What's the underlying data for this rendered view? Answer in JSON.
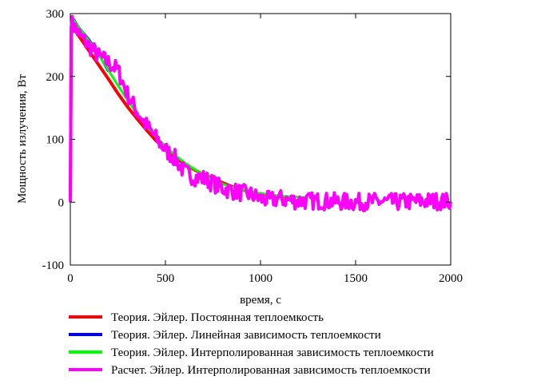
{
  "chart_data": {
    "type": "line",
    "title": "",
    "xlabel": "время, с",
    "ylabel": "Мощность излучения, Вт",
    "xlim": [
      0,
      2000
    ],
    "ylim": [
      -100,
      300
    ],
    "xticks": [
      0,
      500,
      1000,
      1500,
      2000
    ],
    "yticks": [
      -100,
      0,
      100,
      200,
      300
    ],
    "grid": false,
    "legend_position": "bottom",
    "series": [
      {
        "name": "Теория. Эйлер. Постоянная теплоемкость",
        "color": "#ff0000",
        "x": [
          0,
          5,
          20,
          50,
          100,
          150,
          200,
          250,
          300,
          350,
          400,
          450,
          500,
          550,
          600,
          650,
          700,
          750,
          800,
          850,
          900,
          950,
          1000,
          1050,
          1100,
          1150
        ],
        "values": [
          0,
          280,
          276,
          262,
          240,
          218,
          196,
          173,
          152,
          133,
          115,
          98,
          85,
          72,
          61,
          52,
          44,
          37,
          31,
          25,
          20,
          16,
          13,
          11,
          9,
          8
        ]
      },
      {
        "name": "Теория. Эйлер. Линейная зависимость теплоемкости",
        "color": "#0000ff",
        "x": [
          0,
          5,
          20,
          50,
          100,
          150,
          200
        ],
        "values": [
          0,
          285,
          290,
          276,
          258,
          235,
          208
        ]
      },
      {
        "name": "Теория. Эйлер. Интерполированная зависимость теплоемкости",
        "color": "#00ff00",
        "x": [
          0,
          5,
          20,
          50,
          100,
          150,
          200,
          250,
          300,
          350,
          400,
          450,
          500,
          550,
          600,
          650,
          700,
          750,
          800,
          850,
          900,
          950,
          1000,
          1050,
          1100,
          1150,
          1200,
          1250
        ],
        "values": [
          0,
          286,
          289,
          276,
          256,
          234,
          210,
          186,
          163,
          141,
          121,
          104,
          89,
          75,
          63,
          53,
          44,
          36,
          29,
          24,
          20,
          17,
          14,
          12,
          10,
          9,
          8,
          7
        ]
      },
      {
        "name": "Расчет. Эйлер. Интерполированная зависимость теплоемкости",
        "color": "#ff00ff",
        "x": [
          0,
          5,
          20,
          50,
          100,
          150,
          200,
          250,
          300,
          350,
          400,
          450,
          500,
          550,
          600,
          650,
          700,
          750,
          800,
          850,
          900,
          950,
          1000,
          1050,
          1100,
          1150,
          1200,
          1300,
          1400,
          1500,
          1600,
          1700,
          1800,
          1900,
          2000
        ],
        "values": [
          0,
          285,
          280,
          265,
          248,
          232,
          222,
          210,
          172,
          145,
          122,
          102,
          83,
          70,
          48,
          40,
          38,
          30,
          22,
          18,
          15,
          12,
          5,
          3,
          6,
          3,
          2,
          2,
          1,
          0,
          1,
          0,
          1,
          2,
          1
        ]
      }
    ]
  }
}
